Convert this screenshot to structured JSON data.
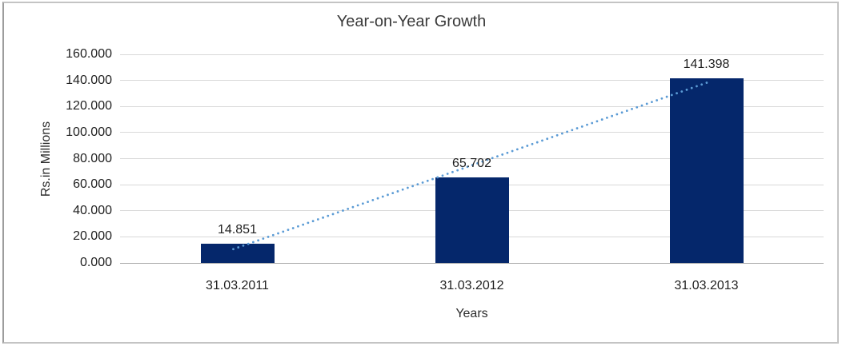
{
  "chart_data": {
    "type": "bar",
    "title": "Year-on-Year Growth",
    "xlabel": "Years",
    "ylabel": "Rs.in Millions",
    "categories": [
      "31.03.2011",
      "31.03.2012",
      "31.03.2013"
    ],
    "values": [
      14.851,
      65.702,
      141.398
    ],
    "data_labels": [
      "14.851",
      "65.702",
      "141.398"
    ],
    "ylim": [
      0,
      160
    ],
    "yticks": [
      {
        "value": 0,
        "label": "0.000"
      },
      {
        "value": 20,
        "label": "20.000"
      },
      {
        "value": 40,
        "label": "40.000"
      },
      {
        "value": 60,
        "label": "60.000"
      },
      {
        "value": 80,
        "label": "80.000"
      },
      {
        "value": 100,
        "label": "100.000"
      },
      {
        "value": 120,
        "label": "120.000"
      },
      {
        "value": 140,
        "label": "140.000"
      },
      {
        "value": 160,
        "label": "160.000"
      }
    ],
    "grid": true,
    "legend_position": "none",
    "series": [
      {
        "name": "values-bars",
        "type": "bar",
        "color": "#05276b"
      },
      {
        "name": "linear-trendline",
        "type": "line",
        "line_style": "dotted",
        "color": "#5b9bd5"
      }
    ],
    "colors": {
      "bar": "#05276b",
      "trendline": "#5b9bd5",
      "gridline": "#d9d9d9",
      "axis_line": "#a6a6a6",
      "frame_border": "#c4c4c4"
    }
  }
}
